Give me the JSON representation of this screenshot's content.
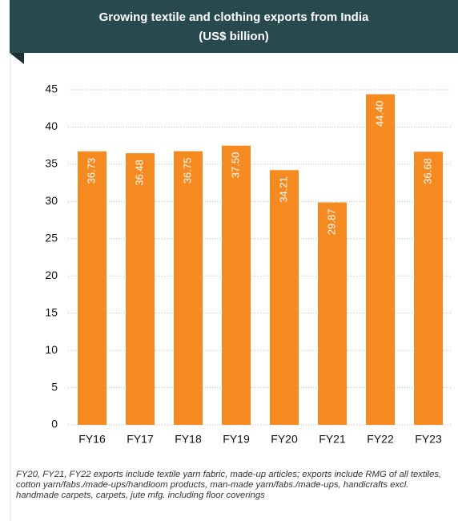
{
  "chart_data": {
    "type": "bar",
    "title": "Growing textile and clothing exports from India",
    "subtitle": "(US$ billion)",
    "categories": [
      "FY16",
      "FY17",
      "FY18",
      "FY19",
      "FY20",
      "FY21",
      "FY22",
      "FY23"
    ],
    "values": [
      36.73,
      36.48,
      36.75,
      37.5,
      34.21,
      29.87,
      44.4,
      36.68
    ],
    "value_labels": [
      "36.73",
      "36.48",
      "36.75",
      "37.50",
      "34.21",
      "29.87",
      "44.40",
      "36.68"
    ],
    "color": "#f58a21",
    "ylim": [
      0,
      45
    ],
    "yticks": [
      0,
      5,
      10,
      15,
      20,
      25,
      30,
      35,
      40,
      45
    ],
    "grid": true,
    "note": "FY20, FY21, FY22 exports include textile yarn fabric, made-up articles; exports include RMG of all textiles, cotton yarn/fabs./made-ups/handloom products, man-made yarn/fabs./made-ups, handicrafts excl. handmade carpets, carpets, jute mfg. including floor coverings"
  }
}
